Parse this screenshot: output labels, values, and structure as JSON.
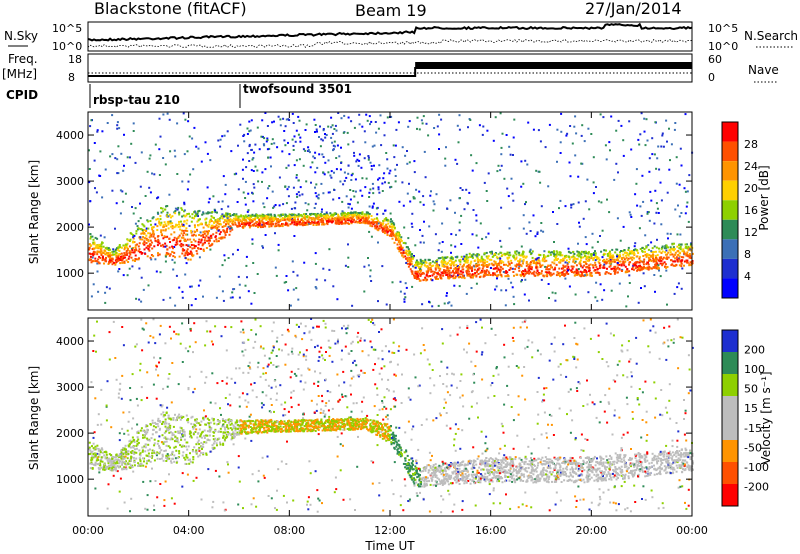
{
  "header": {
    "station": "Blackstone (fitACF)",
    "beam": "Beam 19",
    "date": "27/Jan/2014"
  },
  "top_panels": {
    "nsky_label": "N.Sky",
    "nsearch_label": "N.Search",
    "nsky_ticks": [
      "10^5",
      "10^0"
    ],
    "freq_label": "Freq.",
    "freq_unit": "[MHz]",
    "freq_ticks": [
      "18",
      "8"
    ],
    "nave_label": "Nave",
    "nave_ticks": [
      "60",
      "0"
    ],
    "cpid_label": "CPID",
    "cpid_segments": [
      {
        "name": "rbsp-tau 210"
      },
      {
        "name": "twofsound 3501"
      }
    ]
  },
  "chart_data": [
    {
      "type": "heatmap",
      "name": "power",
      "ylabel": "Slant Range [km]",
      "xlabel": "",
      "ylim": [
        200,
        4500
      ],
      "yticks": [
        "1000",
        "2000",
        "3000",
        "4000"
      ],
      "xlim_hours": [
        0,
        24
      ],
      "colorbar": {
        "label": "Power [dB]",
        "ticks": [
          "28",
          "24",
          "20",
          "16",
          "12",
          "8",
          "4"
        ],
        "colors": [
          "#ff0000",
          "#ff5000",
          "#ff9400",
          "#ffd000",
          "#8ed000",
          "#2e8b57",
          "#3b6fb6",
          "#1e2fd0",
          "#0000ff"
        ]
      },
      "echo_band_km": [
        {
          "t": 0.0,
          "lo": 1250,
          "hi": 1900
        },
        {
          "t": 1.0,
          "lo": 1200,
          "hi": 1500
        },
        {
          "t": 2.0,
          "lo": 1300,
          "hi": 2100
        },
        {
          "t": 3.0,
          "lo": 1400,
          "hi": 2500
        },
        {
          "t": 4.0,
          "lo": 1300,
          "hi": 2400
        },
        {
          "t": 6.0,
          "lo": 2000,
          "hi": 2300
        },
        {
          "t": 8.0,
          "lo": 2050,
          "hi": 2300
        },
        {
          "t": 11.0,
          "lo": 2100,
          "hi": 2350
        },
        {
          "t": 12.0,
          "lo": 1800,
          "hi": 2200
        },
        {
          "t": 13.0,
          "lo": 850,
          "hi": 1300
        },
        {
          "t": 16.0,
          "lo": 950,
          "hi": 1500
        },
        {
          "t": 20.0,
          "lo": 950,
          "hi": 1500
        },
        {
          "t": 24.0,
          "lo": 1200,
          "hi": 1700
        }
      ]
    },
    {
      "type": "heatmap",
      "name": "velocity",
      "ylabel": "Slant Range [km]",
      "xlabel": "Time UT",
      "ylim": [
        200,
        4500
      ],
      "yticks": [
        "1000",
        "2000",
        "3000",
        "4000"
      ],
      "xticks": [
        "00:00",
        "04:00",
        "08:00",
        "12:00",
        "16:00",
        "20:00",
        "00:00"
      ],
      "xlim_hours": [
        0,
        24
      ],
      "colorbar": {
        "label": "Velocity [m s⁻¹]",
        "ticks": [
          "200",
          "100",
          "50",
          "15",
          "-15",
          "-50",
          "-100",
          "-200"
        ],
        "colors": [
          "#1e2fd0",
          "#2e8b57",
          "#8ed000",
          "#bdbdbd",
          "#bdbdbd",
          "#ff9400",
          "#ff5000",
          "#ff0000"
        ]
      }
    }
  ]
}
